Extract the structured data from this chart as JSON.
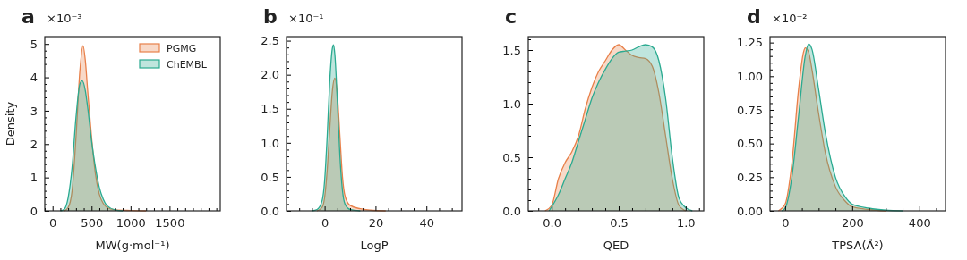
{
  "chart_data": [
    {
      "type": "area",
      "title": "a",
      "xlabel": "MW(g·mol⁻¹)",
      "ylabel": "Density",
      "annotations": [
        "×10⁻³"
      ],
      "legend": "top right",
      "xlim": [
        -100,
        2150
      ],
      "ylim": [
        0,
        5.22
      ],
      "xticks": [
        {
          "value": -100,
          "label": null
        },
        0,
        {
          "value": 100,
          "label": null
        },
        {
          "value": 200,
          "label": null
        },
        {
          "value": 300,
          "label": null
        },
        {
          "value": 400,
          "label": null
        },
        500,
        {
          "value": 600,
          "label": null
        },
        {
          "value": 700,
          "label": null
        },
        {
          "value": 800,
          "label": null
        },
        {
          "value": 900,
          "label": null
        },
        1000,
        {
          "value": 1100,
          "label": null
        },
        {
          "value": 1200,
          "label": null
        },
        {
          "value": 1300,
          "label": null
        },
        {
          "value": 1400,
          "label": null
        },
        1500,
        {
          "value": 1600,
          "label": null
        },
        {
          "value": 1700,
          "label": null
        },
        {
          "value": 1800,
          "label": null
        },
        {
          "value": 1900,
          "label": null
        },
        {
          "value": 2000,
          "label": null
        },
        {
          "value": 2100,
          "label": null
        }
      ],
      "yticks": [
        0,
        {
          "value": 0.2,
          "label": null
        },
        {
          "value": 0.4,
          "label": null
        },
        {
          "value": 0.6,
          "label": null
        },
        {
          "value": 0.8,
          "label": null
        },
        1,
        {
          "value": 1.2,
          "label": null
        },
        {
          "value": 1.4,
          "label": null
        },
        {
          "value": 1.6,
          "label": null
        },
        {
          "value": 1.8,
          "label": null
        },
        2,
        {
          "value": 2.2,
          "label": null
        },
        {
          "value": 2.4,
          "label": null
        },
        {
          "value": 2.6,
          "label": null
        },
        {
          "value": 2.8,
          "label": null
        },
        3,
        {
          "value": 3.2,
          "label": null
        },
        {
          "value": 3.4,
          "label": null
        },
        {
          "value": 3.6,
          "label": null
        },
        {
          "value": 3.8,
          "label": null
        },
        4,
        {
          "value": 4.2,
          "label": null
        },
        {
          "value": 4.4,
          "label": null
        },
        {
          "value": 4.6,
          "label": null
        },
        {
          "value": 4.8,
          "label": null
        },
        5
      ],
      "series": [
        {
          "name": "PGMG",
          "color": "#e8804a",
          "x": [
            150,
            200,
            250,
            300,
            350,
            390,
            420,
            450,
            500,
            550,
            600,
            650,
            700,
            800,
            1000,
            1200
          ],
          "values": [
            0,
            0.1,
            0.6,
            2.2,
            4.2,
            4.95,
            4.5,
            3.6,
            2.2,
            1.1,
            0.5,
            0.22,
            0.1,
            0.03,
            0.01,
            0
          ]
        },
        {
          "name": "ChEMBL",
          "color": "#2aaa90",
          "x": [
            100,
            150,
            200,
            250,
            300,
            350,
            380,
            420,
            450,
            500,
            550,
            600,
            650,
            700,
            800,
            900
          ],
          "values": [
            0,
            0.05,
            0.4,
            1.3,
            2.8,
            3.8,
            3.9,
            3.6,
            3.1,
            2.1,
            1.3,
            0.7,
            0.35,
            0.15,
            0.03,
            0
          ]
        }
      ]
    },
    {
      "type": "area",
      "title": "b",
      "xlabel": "LogP",
      "annotations": [
        "×10⁻¹"
      ],
      "xlim": [
        -15,
        54
      ],
      "ylim": [
        0,
        2.56
      ],
      "xticks": [
        {
          "value": -15,
          "label": null
        },
        {
          "value": -10,
          "label": null
        },
        {
          "value": -5,
          "label": null
        },
        0,
        {
          "value": 5,
          "label": null
        },
        {
          "value": 10,
          "label": null
        },
        {
          "value": 15,
          "label": null
        },
        20,
        {
          "value": 25,
          "label": null
        },
        {
          "value": 30,
          "label": null
        },
        {
          "value": 35,
          "label": null
        },
        40,
        {
          "value": 45,
          "label": null
        },
        {
          "value": 50,
          "label": null
        }
      ],
      "yticks": [
        {
          "value": 0,
          "label": "0.0"
        },
        {
          "value": 0.1,
          "label": null
        },
        {
          "value": 0.2,
          "label": null
        },
        {
          "value": 0.3,
          "label": null
        },
        {
          "value": 0.4,
          "label": null
        },
        0.5,
        {
          "value": 0.6,
          "label": null
        },
        {
          "value": 0.7,
          "label": null
        },
        {
          "value": 0.8,
          "label": null
        },
        {
          "value": 0.9,
          "label": null
        },
        {
          "value": 1,
          "label": "1.0"
        },
        {
          "value": 1.1,
          "label": null
        },
        {
          "value": 1.2,
          "label": null
        },
        {
          "value": 1.3,
          "label": null
        },
        {
          "value": 1.4,
          "label": null
        },
        1.5,
        {
          "value": 1.6,
          "label": null
        },
        {
          "value": 1.7,
          "label": null
        },
        {
          "value": 1.8,
          "label": null
        },
        {
          "value": 1.9,
          "label": null
        },
        {
          "value": 2,
          "label": "2.0"
        },
        {
          "value": 2.1,
          "label": null
        },
        {
          "value": 2.2,
          "label": null
        },
        {
          "value": 2.3,
          "label": null
        },
        {
          "value": 2.4,
          "label": null
        },
        2.5
      ],
      "series": [
        {
          "color": "#e8804a",
          "x": [
            -3,
            -1,
            0,
            1,
            2,
            3,
            4,
            5,
            6,
            7,
            8,
            10,
            14,
            18,
            24
          ],
          "values": [
            0,
            0.05,
            0.2,
            0.6,
            1.2,
            1.75,
            1.95,
            1.7,
            1.1,
            0.5,
            0.22,
            0.08,
            0.03,
            0.01,
            0
          ]
        },
        {
          "color": "#2aaa90",
          "x": [
            -5,
            -3,
            -1,
            0,
            1,
            2,
            3,
            3.5,
            4,
            5,
            6,
            7,
            8,
            10,
            14
          ],
          "values": [
            0,
            0.02,
            0.15,
            0.45,
            1.1,
            1.9,
            2.38,
            2.44,
            2.3,
            1.6,
            0.8,
            0.3,
            0.1,
            0.02,
            0
          ]
        }
      ]
    },
    {
      "type": "area",
      "title": "c",
      "xlabel": "QED",
      "xlim": [
        -0.175,
        1.135
      ],
      "ylim": [
        0,
        1.625
      ],
      "xticks": [
        {
          "value": -0.1,
          "label": null
        },
        {
          "value": 0,
          "label": "0.0"
        },
        {
          "value": 0.1,
          "label": null
        },
        {
          "value": 0.2,
          "label": null
        },
        {
          "value": 0.3,
          "label": null
        },
        {
          "value": 0.4,
          "label": null
        },
        0.5,
        {
          "value": 0.6,
          "label": null
        },
        {
          "value": 0.7,
          "label": null
        },
        {
          "value": 0.8,
          "label": null
        },
        {
          "value": 0.9,
          "label": null
        },
        {
          "value": 1,
          "label": "1.0"
        },
        {
          "value": 1.1,
          "label": null
        }
      ],
      "yticks": [
        {
          "value": 0,
          "label": "0.0"
        },
        {
          "value": 0.1,
          "label": null
        },
        {
          "value": 0.2,
          "label": null
        },
        {
          "value": 0.3,
          "label": null
        },
        {
          "value": 0.4,
          "label": null
        },
        0.5,
        {
          "value": 0.6,
          "label": null
        },
        {
          "value": 0.7,
          "label": null
        },
        {
          "value": 0.8,
          "label": null
        },
        {
          "value": 0.9,
          "label": null
        },
        {
          "value": 1,
          "label": "1.0"
        },
        {
          "value": 1.1,
          "label": null
        },
        {
          "value": 1.2,
          "label": null
        },
        {
          "value": 1.3,
          "label": null
        },
        {
          "value": 1.4,
          "label": null
        },
        1.5,
        {
          "value": 1.6,
          "label": null
        }
      ],
      "series": [
        {
          "color": "#e8804a",
          "x": [
            -0.05,
            0,
            0.05,
            0.1,
            0.15,
            0.2,
            0.25,
            0.3,
            0.35,
            0.4,
            0.45,
            0.5,
            0.55,
            0.6,
            0.65,
            0.7,
            0.75,
            0.8,
            0.85,
            0.9,
            0.95,
            1
          ],
          "values": [
            0,
            0.05,
            0.3,
            0.45,
            0.55,
            0.7,
            0.95,
            1.15,
            1.3,
            1.4,
            1.5,
            1.55,
            1.5,
            1.45,
            1.43,
            1.42,
            1.35,
            1.1,
            0.7,
            0.3,
            0.05,
            0
          ]
        },
        {
          "color": "#2aaa90",
          "x": [
            -0.02,
            0.05,
            0.1,
            0.15,
            0.2,
            0.25,
            0.3,
            0.35,
            0.4,
            0.45,
            0.5,
            0.55,
            0.6,
            0.65,
            0.7,
            0.75,
            0.8,
            0.85,
            0.9,
            0.95,
            1,
            1.05
          ],
          "values": [
            0,
            0.15,
            0.3,
            0.45,
            0.65,
            0.85,
            1.05,
            1.2,
            1.32,
            1.42,
            1.48,
            1.49,
            1.5,
            1.53,
            1.55,
            1.53,
            1.4,
            1.05,
            0.5,
            0.12,
            0.03,
            0
          ]
        }
      ]
    },
    {
      "type": "area",
      "title": "d",
      "xlabel": "TPSA(Å²)",
      "annotations": [
        "×10⁻²"
      ],
      "xlim": [
        -45,
        478
      ],
      "ylim": [
        0,
        1.294
      ],
      "xticks": [
        0,
        {
          "value": 50,
          "label": null
        },
        {
          "value": 100,
          "label": null
        },
        {
          "value": 150,
          "label": null
        },
        200,
        {
          "value": 250,
          "label": null
        },
        {
          "value": 300,
          "label": null
        },
        {
          "value": 350,
          "label": null
        },
        400,
        {
          "value": 450,
          "label": null
        }
      ],
      "yticks": [
        {
          "value": 0,
          "label": "0.00"
        },
        {
          "value": 0.05,
          "label": null
        },
        {
          "value": 0.1,
          "label": null
        },
        {
          "value": 0.15,
          "label": null
        },
        {
          "value": 0.2,
          "label": null
        },
        0.25,
        {
          "value": 0.3,
          "label": null
        },
        {
          "value": 0.35,
          "label": null
        },
        {
          "value": 0.4,
          "label": null
        },
        {
          "value": 0.45,
          "label": null
        },
        {
          "value": 0.5,
          "label": "0.50"
        },
        {
          "value": 0.55,
          "label": null
        },
        {
          "value": 0.6,
          "label": null
        },
        {
          "value": 0.65,
          "label": null
        },
        {
          "value": 0.7,
          "label": null
        },
        0.75,
        {
          "value": 0.8,
          "label": null
        },
        {
          "value": 0.85,
          "label": null
        },
        {
          "value": 0.9,
          "label": null
        },
        {
          "value": 0.95,
          "label": null
        },
        {
          "value": 1,
          "label": "1.00"
        },
        {
          "value": 1.05,
          "label": null
        },
        {
          "value": 1.1,
          "label": null
        },
        {
          "value": 1.15,
          "label": null
        },
        {
          "value": 1.2,
          "label": null
        },
        1.25
      ],
      "series": [
        {
          "color": "#e8804a",
          "x": [
            -20,
            0,
            20,
            40,
            55,
            60,
            70,
            80,
            100,
            120,
            150,
            180,
            200,
            250,
            300
          ],
          "values": [
            0,
            0.05,
            0.35,
            0.9,
            1.18,
            1.21,
            1.18,
            1.05,
            0.72,
            0.43,
            0.18,
            0.07,
            0.03,
            0.01,
            0
          ]
        },
        {
          "color": "#2aaa90",
          "x": [
            -10,
            0,
            20,
            40,
            60,
            70,
            80,
            100,
            120,
            150,
            180,
            200,
            250,
            300,
            350
          ],
          "values": [
            0,
            0.02,
            0.25,
            0.7,
            1.15,
            1.24,
            1.2,
            0.9,
            0.58,
            0.25,
            0.1,
            0.05,
            0.02,
            0.005,
            0
          ]
        }
      ]
    }
  ]
}
